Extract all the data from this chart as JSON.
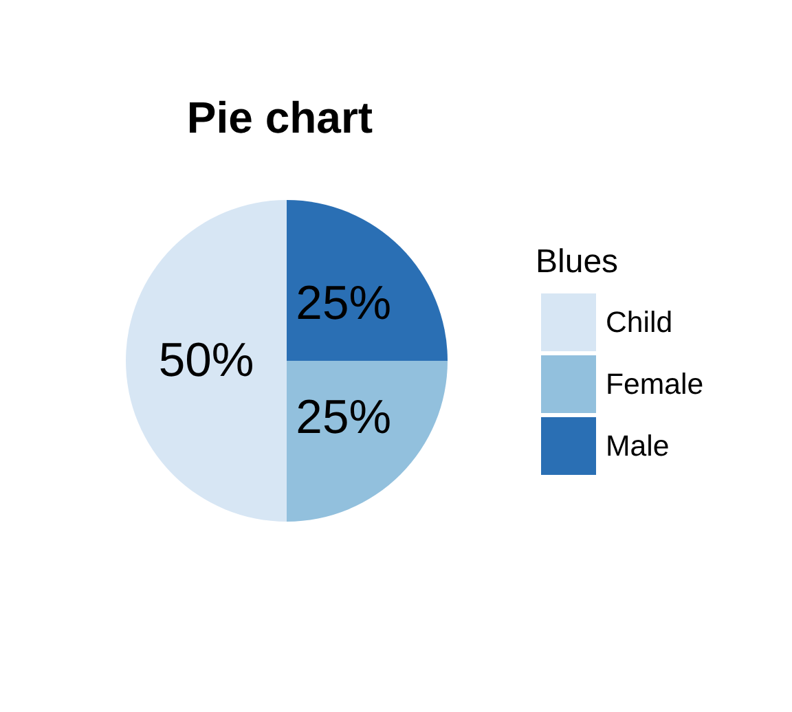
{
  "chart_data": {
    "type": "pie",
    "title": "Pie chart",
    "legend_title": "Blues",
    "categories": [
      "Child",
      "Female",
      "Male"
    ],
    "values": [
      50,
      25,
      25
    ],
    "colors": [
      "#d7e6f4",
      "#92c0dd",
      "#2a6fb4"
    ],
    "value_labels": [
      "50%",
      "25%",
      "25%"
    ],
    "legend": "right"
  }
}
